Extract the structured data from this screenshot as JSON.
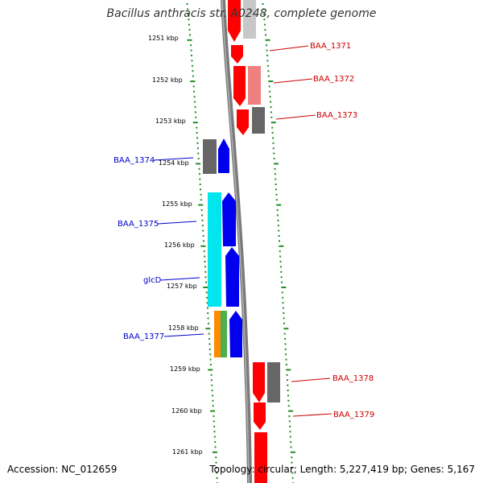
{
  "title": "Bacillus anthracis str. A0248, complete genome",
  "accession": "Accession: NC_012659",
  "summary": "Topology: circular; Length: 5,227,419 bp; Genes: 5,167",
  "colors": {
    "backbone": "#808080",
    "tick": "#228b22",
    "forward_label": "#0000cc",
    "reverse_label": "#cc0000",
    "red": "#ff0000",
    "light_red": "#f08080",
    "grey": "#666666",
    "light_grey": "#c8c8c8",
    "blue": "#0000ee",
    "cyan": "#00e5ee",
    "orange": "#ff8c00",
    "green": "#4caf50"
  },
  "ruler": [
    "1251 kbp",
    "1252 kbp",
    "1253 kbp",
    "1254 kbp",
    "1255 kbp",
    "1256 kbp",
    "1257 kbp",
    "1258 kbp",
    "1259 kbp",
    "1260 kbp",
    "1261 kbp"
  ],
  "gene_labels": {
    "BAA_1371": "BAA_1371",
    "BAA_1372": "BAA_1372",
    "BAA_1373": "BAA_1373",
    "BAA_1374": "BAA_1374",
    "BAA_1375": "BAA_1375",
    "glcD": "glcD",
    "BAA_1377": "BAA_1377",
    "BAA_1378": "BAA_1378",
    "BAA_1379": "BAA_1379"
  }
}
